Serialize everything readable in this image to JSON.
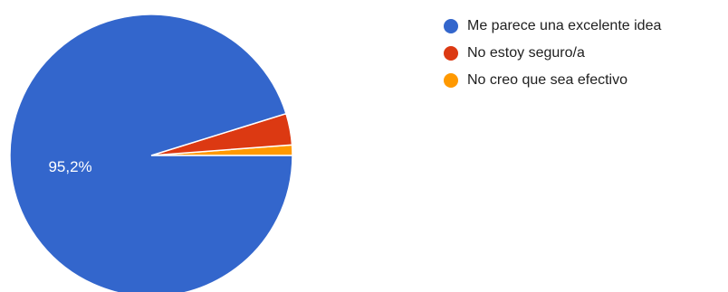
{
  "chart_data": {
    "type": "pie",
    "categories": [
      "Me parece una excelente idea",
      "No estoy seguro/a",
      "No creo que sea efectivo"
    ],
    "values": [
      95.2,
      3.6,
      1.2
    ],
    "colors": [
      "#3366cc",
      "#dc3912",
      "#ff9900"
    ],
    "data_labels": [
      "95,2%",
      "",
      ""
    ],
    "legend_position": "right"
  }
}
